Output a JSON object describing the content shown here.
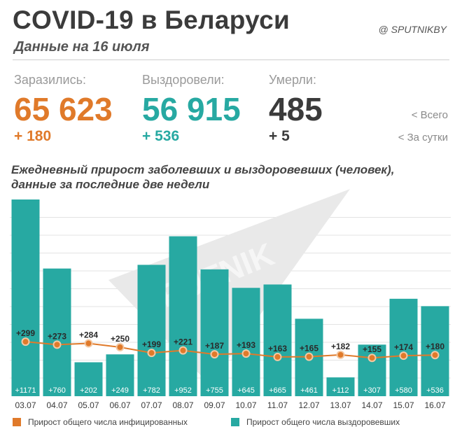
{
  "header": {
    "title": "COVID-19 в Беларуси",
    "subtitle": "Данные на 16 июля",
    "brand": "@ SPUTNIKBY"
  },
  "stats": {
    "infected": {
      "label": "Заразились:",
      "total": "65 623",
      "daily": "+ 180",
      "color": "#e07a2a"
    },
    "recovered": {
      "label": "Выздоровели:",
      "total": "56 915",
      "daily": "+ 536",
      "color": "#27a9a2"
    },
    "died": {
      "label": "Умерли:",
      "total": "485",
      "daily": "+ 5",
      "color": "#3b3b3b"
    },
    "legend_total": "<  Всего",
    "legend_daily": "<  За сутки"
  },
  "watermark": "SPUTNIK",
  "chart_data": {
    "type": "bar",
    "title": "Ежедневный прирост заболевших и выздоровевших (человек),\nданные за последние две недели",
    "categories": [
      "03.07",
      "04.07",
      "05.07",
      "06.07",
      "07.07",
      "08.07",
      "09.07",
      "10.07",
      "11.07",
      "12.07",
      "13.07",
      "14.07",
      "15.07",
      "16.07"
    ],
    "series": [
      {
        "name": "Прирост общего числа выздоровевших",
        "type": "bar",
        "color": "#27a9a2",
        "values": [
          1171,
          760,
          202,
          249,
          782,
          952,
          755,
          645,
          665,
          461,
          112,
          307,
          580,
          536
        ],
        "labels": [
          "+1171",
          "+760",
          "+202",
          "+249",
          "+782",
          "+952",
          "+755",
          "+645",
          "+665",
          "+461",
          "+112",
          "+307",
          "+580",
          "+536"
        ]
      },
      {
        "name": "Прирост общего числа инфицированных",
        "type": "line",
        "color": "#e07a2a",
        "values": [
          299,
          273,
          284,
          250,
          199,
          221,
          187,
          193,
          163,
          165,
          182,
          155,
          174,
          180
        ],
        "labels": [
          "+299",
          "+273",
          "+284",
          "+250",
          "+199",
          "+221",
          "+187",
          "+193",
          "+163",
          "+165",
          "+182",
          "+155",
          "+174",
          "+180"
        ]
      }
    ],
    "ylim": [
      0,
      1171
    ],
    "grid": true,
    "legend_position": "bottom"
  },
  "legend": {
    "infected": "Прирост общего числа инфицированных",
    "recovered": "Прирост общего числа выздоровевших"
  }
}
